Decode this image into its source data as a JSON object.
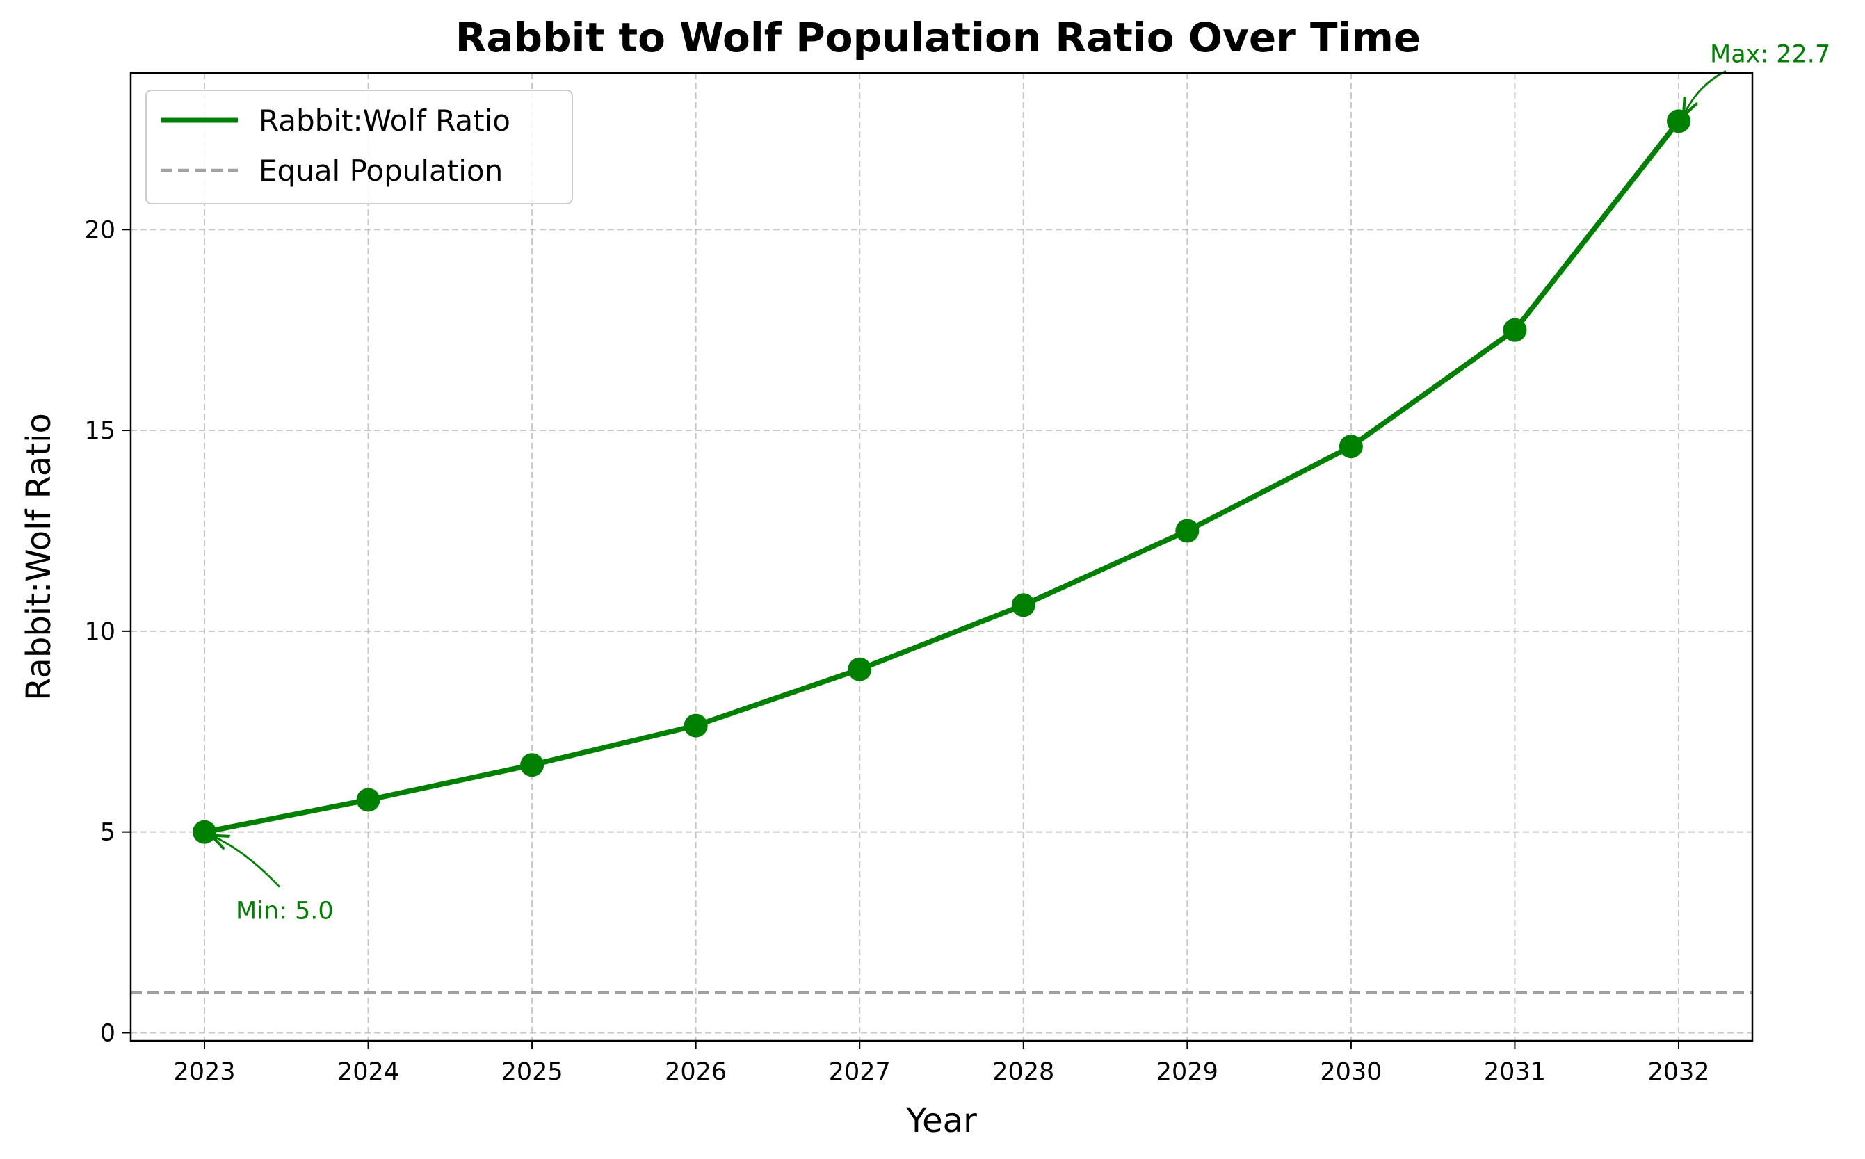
{
  "chart_data": {
    "type": "line",
    "title": "Rabbit to Wolf Population Ratio Over Time",
    "xlabel": "Year",
    "ylabel": "Rabbit:Wolf Ratio",
    "x": [
      2023,
      2024,
      2025,
      2026,
      2027,
      2028,
      2029,
      2030,
      2031,
      2032
    ],
    "x_tick_labels": [
      "2023",
      "2024",
      "2025",
      "2026",
      "2027",
      "2028",
      "2029",
      "2030",
      "2031",
      "2032"
    ],
    "y_ticks": [
      0,
      5,
      10,
      15,
      20
    ],
    "y_tick_labels": [
      "0",
      "5",
      "10",
      "15",
      "20"
    ],
    "xlim": [
      2022.55,
      2032.45
    ],
    "ylim": [
      -0.2,
      23.9
    ],
    "grid": true,
    "legend_position": "top-left",
    "series": [
      {
        "name": "Rabbit:Wolf Ratio",
        "color": "#008000",
        "style": "solid",
        "marker": "circle",
        "values": [
          5.0,
          5.8,
          6.67,
          7.65,
          9.05,
          10.65,
          12.5,
          14.6,
          17.5,
          22.7
        ]
      }
    ],
    "reference_line": {
      "name": "Equal Population",
      "y": 1,
      "color": "#a0a0a0",
      "style": "dashed"
    },
    "annotations": [
      {
        "text": "Min: 5.0",
        "x": 2023,
        "y": 5.0,
        "color": "#008000"
      },
      {
        "text": "Max: 22.7",
        "x": 2032,
        "y": 22.7,
        "color": "#008000"
      }
    ]
  }
}
